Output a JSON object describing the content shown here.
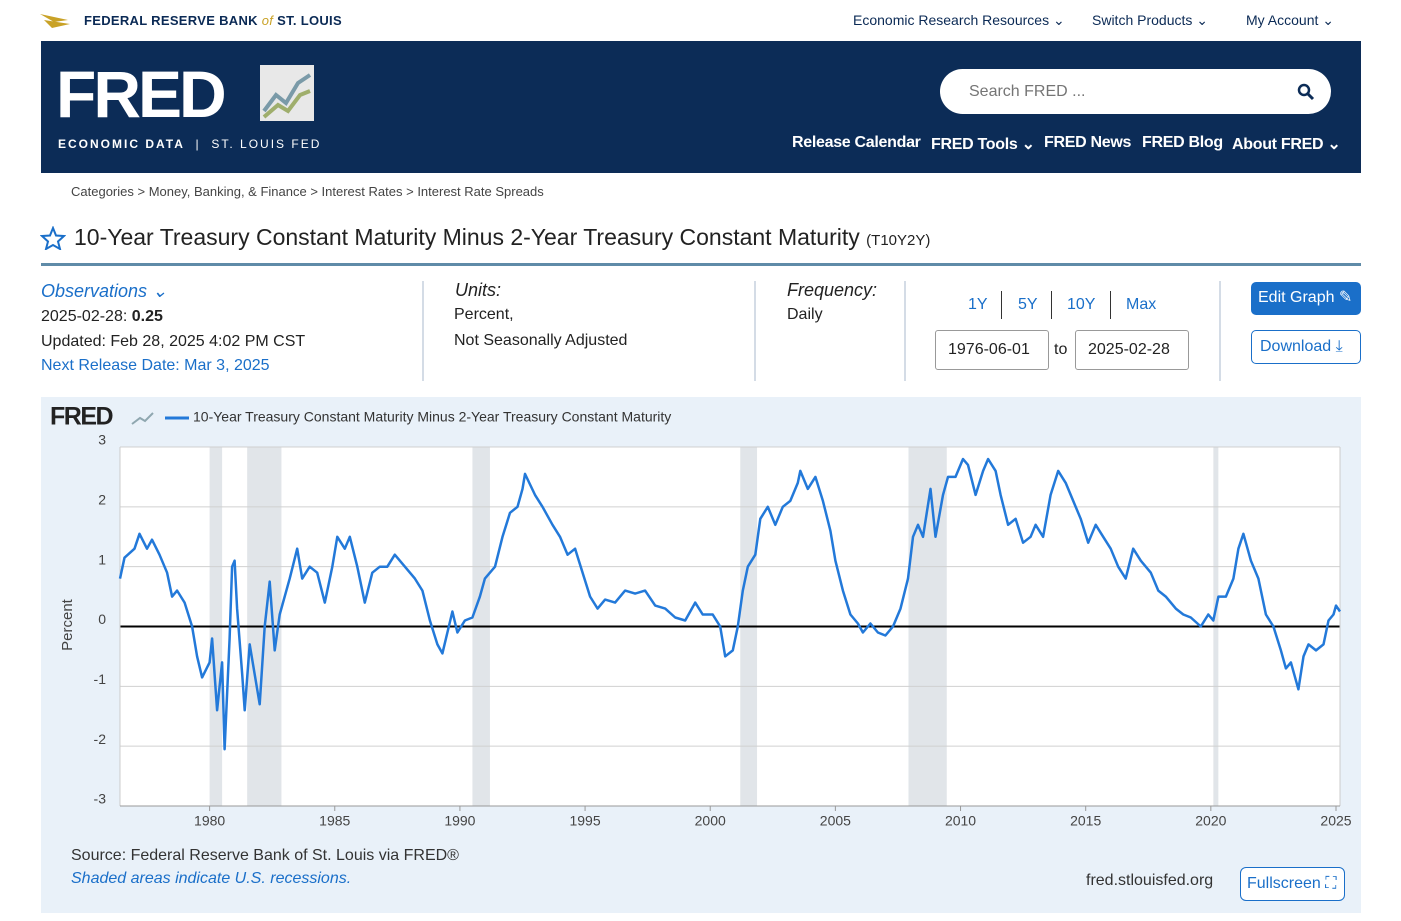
{
  "header": {
    "bank_name": "FEDERAL RESERVE BANK",
    "bank_of": "of",
    "bank_city": "ST. LOUIS",
    "top_nav": [
      "Economic Research Resources",
      "Switch Products",
      "My Account"
    ],
    "logo": "FRED",
    "tagline_left": "ECONOMIC DATA",
    "tagline_right": "ST. LOUIS FED",
    "search_placeholder": "Search FRED ...",
    "main_nav": [
      "Release Calendar",
      "FRED Tools",
      "FRED News",
      "FRED Blog",
      "About FRED"
    ]
  },
  "breadcrumbs": [
    "Categories",
    "Money, Banking, & Finance",
    "Interest Rates",
    "Interest Rate Spreads"
  ],
  "series": {
    "title": "10-Year Treasury Constant Maturity Minus 2-Year Treasury Constant Maturity",
    "id": "(T10Y2Y)"
  },
  "observations": {
    "label": "Observations",
    "date": "2025-02-28:",
    "value": 0.25,
    "updated": "Updated: Feb 28, 2025 4:02 PM CST",
    "next_release": "Next Release Date: Mar 3, 2025"
  },
  "units": {
    "label": "Units:",
    "lines": [
      "Percent,",
      "Not Seasonally Adjusted"
    ]
  },
  "frequency": {
    "label": "Frequency:",
    "value": "Daily"
  },
  "range": {
    "buttons": [
      "1Y",
      "5Y",
      "10Y",
      "Max"
    ],
    "from": "1976-06-01",
    "to_word": "to",
    "to": "2025-02-28"
  },
  "actions": [
    "Edit Graph",
    "Download"
  ],
  "chart_data": {
    "type": "line",
    "brand": "FRED",
    "y_label": "Percent",
    "xlim": [
      1976.42,
      2025.16
    ],
    "xticks": [
      1980,
      1985,
      1990,
      1995,
      2000,
      2005,
      2010,
      2015,
      2020,
      2025
    ],
    "ylim": [
      -3,
      3
    ],
    "yticks": [
      3,
      2,
      1,
      0,
      -1,
      -2,
      -3
    ],
    "grid": true,
    "recessions": [
      [
        1980.0,
        1980.5
      ],
      [
        1981.5,
        1982.87
      ],
      [
        1990.5,
        1991.2
      ],
      [
        2001.2,
        2001.87
      ],
      [
        2007.92,
        2009.45
      ],
      [
        2020.1,
        2020.3
      ]
    ],
    "x": [
      1976.42,
      1976.6,
      1977.0,
      1977.2,
      1977.5,
      1977.7,
      1978.0,
      1978.3,
      1978.5,
      1978.7,
      1979.0,
      1979.3,
      1979.5,
      1979.7,
      1980.0,
      1980.1,
      1980.3,
      1980.5,
      1980.6,
      1980.8,
      1980.9,
      1981.0,
      1981.1,
      1981.3,
      1981.4,
      1981.6,
      1981.8,
      1982.0,
      1982.2,
      1982.4,
      1982.6,
      1982.8,
      1983.0,
      1983.2,
      1983.5,
      1983.7,
      1984.0,
      1984.3,
      1984.6,
      1984.9,
      1985.1,
      1985.4,
      1985.6,
      1985.9,
      1986.2,
      1986.5,
      1986.8,
      1987.1,
      1987.4,
      1987.8,
      1988.2,
      1988.5,
      1988.8,
      1989.1,
      1989.3,
      1989.5,
      1989.7,
      1989.9,
      1990.2,
      1990.5,
      1990.8,
      1991.0,
      1991.4,
      1991.7,
      1992.0,
      1992.3,
      1992.5,
      1992.6,
      1993.0,
      1993.3,
      1993.7,
      1994.0,
      1994.3,
      1994.6,
      1994.9,
      1995.2,
      1995.5,
      1995.8,
      1996.2,
      1996.6,
      1997.0,
      1997.4,
      1997.8,
      1998.2,
      1998.6,
      1999.0,
      1999.4,
      1999.7,
      2000.1,
      2000.4,
      2000.6,
      2000.9,
      2001.1,
      2001.3,
      2001.5,
      2001.8,
      2002.0,
      2002.3,
      2002.6,
      2002.9,
      2003.2,
      2003.5,
      2003.6,
      2003.9,
      2004.2,
      2004.5,
      2004.8,
      2005.0,
      2005.3,
      2005.6,
      2005.9,
      2006.1,
      2006.4,
      2006.7,
      2007.0,
      2007.3,
      2007.6,
      2007.9,
      2008.1,
      2008.3,
      2008.5,
      2008.8,
      2009.0,
      2009.3,
      2009.5,
      2009.8,
      2010.1,
      2010.3,
      2010.6,
      2010.9,
      2011.1,
      2011.4,
      2011.6,
      2011.9,
      2012.2,
      2012.5,
      2012.8,
      2013.0,
      2013.3,
      2013.6,
      2013.9,
      2014.2,
      2014.5,
      2014.8,
      2015.1,
      2015.4,
      2015.7,
      2016.0,
      2016.3,
      2016.6,
      2016.9,
      2017.2,
      2017.6,
      2017.9,
      2018.2,
      2018.6,
      2018.9,
      2019.2,
      2019.6,
      2019.9,
      2020.1,
      2020.3,
      2020.6,
      2020.9,
      2021.1,
      2021.3,
      2021.6,
      2021.9,
      2022.2,
      2022.5,
      2022.8,
      2023.0,
      2023.2,
      2023.5,
      2023.7,
      2023.9,
      2024.2,
      2024.5,
      2024.7,
      2024.9,
      2025.0,
      2025.16
    ],
    "series": [
      {
        "name": "10-Year Treasury Constant Maturity Minus 2-Year Treasury Constant Maturity",
        "color": "#2379d9",
        "values": [
          0.8,
          1.15,
          1.3,
          1.55,
          1.3,
          1.45,
          1.2,
          0.9,
          0.5,
          0.6,
          0.4,
          0.0,
          -0.5,
          -0.85,
          -0.6,
          -0.2,
          -1.4,
          -0.6,
          -2.05,
          -0.2,
          1.0,
          1.1,
          0.3,
          -0.8,
          -1.4,
          -0.3,
          -0.8,
          -1.3,
          0.0,
          0.75,
          -0.4,
          0.2,
          0.5,
          0.8,
          1.3,
          0.8,
          1.0,
          0.9,
          0.4,
          1.0,
          1.5,
          1.3,
          1.5,
          1.0,
          0.4,
          0.9,
          1.0,
          1.0,
          1.2,
          1.0,
          0.8,
          0.6,
          0.1,
          -0.3,
          -0.45,
          -0.1,
          0.25,
          -0.1,
          0.1,
          0.15,
          0.5,
          0.8,
          1.0,
          1.5,
          1.9,
          2.0,
          2.3,
          2.55,
          2.2,
          2.0,
          1.7,
          1.5,
          1.2,
          1.3,
          0.9,
          0.5,
          0.3,
          0.45,
          0.4,
          0.6,
          0.55,
          0.6,
          0.35,
          0.3,
          0.15,
          0.1,
          0.4,
          0.2,
          0.2,
          0.0,
          -0.5,
          -0.4,
          0.0,
          0.6,
          1.0,
          1.2,
          1.8,
          2.0,
          1.7,
          2.0,
          2.1,
          2.4,
          2.6,
          2.3,
          2.5,
          2.1,
          1.6,
          1.1,
          0.6,
          0.2,
          0.05,
          -0.1,
          0.05,
          -0.1,
          -0.15,
          0.0,
          0.3,
          0.8,
          1.5,
          1.7,
          1.5,
          2.3,
          1.5,
          2.2,
          2.5,
          2.5,
          2.8,
          2.7,
          2.2,
          2.6,
          2.8,
          2.6,
          2.2,
          1.7,
          1.8,
          1.4,
          1.5,
          1.7,
          1.5,
          2.2,
          2.6,
          2.4,
          2.1,
          1.8,
          1.4,
          1.7,
          1.5,
          1.3,
          1.0,
          0.8,
          1.3,
          1.1,
          0.9,
          0.6,
          0.5,
          0.3,
          0.2,
          0.15,
          0.0,
          0.2,
          0.1,
          0.5,
          0.5,
          0.8,
          1.3,
          1.55,
          1.1,
          0.8,
          0.2,
          0.0,
          -0.4,
          -0.7,
          -0.6,
          -1.05,
          -0.5,
          -0.3,
          -0.4,
          -0.3,
          0.1,
          0.2,
          0.35,
          0.25
        ]
      }
    ]
  },
  "chart_footer": {
    "source": "Source: Federal Reserve Bank of St. Louis via FRED®",
    "note": "Shaded areas indicate U.S. recessions.",
    "url": "fred.stlouisfed.org",
    "fullscreen": "Fullscreen"
  }
}
